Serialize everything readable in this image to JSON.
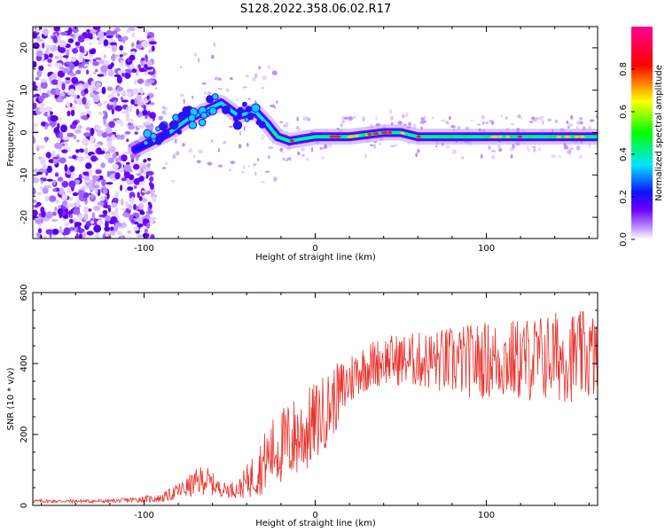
{
  "figure": {
    "title": "S128.2022.358.06.02.R17"
  },
  "chart_data": [
    {
      "type": "heatmap",
      "id": "spectrogram",
      "xlabel": "Height of straight line (km)",
      "ylabel": "Frequency (Hz)",
      "xlim": [
        -165,
        165
      ],
      "ylim": [
        -25,
        25
      ],
      "xticks": [
        -100,
        0,
        100
      ],
      "yticks": [
        -20,
        -10,
        0,
        10,
        20
      ],
      "grid": false,
      "colorbar": {
        "label": "Normalized spectral amplitude",
        "range": [
          0,
          1
        ],
        "ticks": [
          0.0,
          0.2,
          0.4,
          0.6,
          0.8
        ],
        "tick_labels": [
          "0.0",
          "0.2",
          "0.4",
          "0.6",
          "0.8"
        ],
        "stops": [
          "#ffffff",
          "#6a00ff",
          "#0000ff",
          "#00e5ff",
          "#00ff00",
          "#ffff00",
          "#ff0000",
          "#ff0090"
        ]
      },
      "ridge": {
        "description_values_x_km": [
          -105,
          -95,
          -85,
          -75,
          -65,
          -55,
          -45,
          -35,
          -28,
          -22,
          -15,
          0,
          20,
          40,
          50,
          60,
          80,
          100,
          120,
          140,
          165
        ],
        "frequency_hz": [
          -4,
          -2,
          0,
          3,
          5,
          7,
          4,
          5,
          2,
          -1,
          -2,
          -1,
          -1,
          0,
          0,
          -1,
          -1,
          -1,
          -1,
          -1,
          -1
        ]
      },
      "noise_region_x_km": [
        -165,
        -100
      ]
    },
    {
      "type": "line",
      "id": "snr",
      "xlabel": "Height of straight line (km)",
      "ylabel": "SNR (10 * v/v)",
      "xlim": [
        -165,
        165
      ],
      "ylim": [
        0,
        600
      ],
      "xticks": [
        -100,
        0,
        100
      ],
      "yticks": [
        0,
        200,
        400,
        600
      ],
      "grid": false,
      "series": [
        {
          "color": "#e8312a",
          "envelope": {
            "x": [
              -165,
              -120,
              -90,
              -75,
              -65,
              -55,
              -45,
              -35,
              -25,
              -15,
              -5,
              5,
              15,
              25,
              40,
              60,
              80,
              100,
              120,
              140,
              165
            ],
            "mean": [
              12,
              12,
              20,
              50,
              75,
              45,
              45,
              90,
              150,
              180,
              210,
              260,
              320,
              380,
              410,
              410,
              405,
              410,
              410,
              420,
              420
            ],
            "spread": [
              5,
              5,
              12,
              30,
              45,
              20,
              25,
              70,
              100,
              120,
              120,
              110,
              90,
              70,
              70,
              80,
              100,
              110,
              120,
              130,
              130
            ]
          }
        }
      ]
    }
  ]
}
